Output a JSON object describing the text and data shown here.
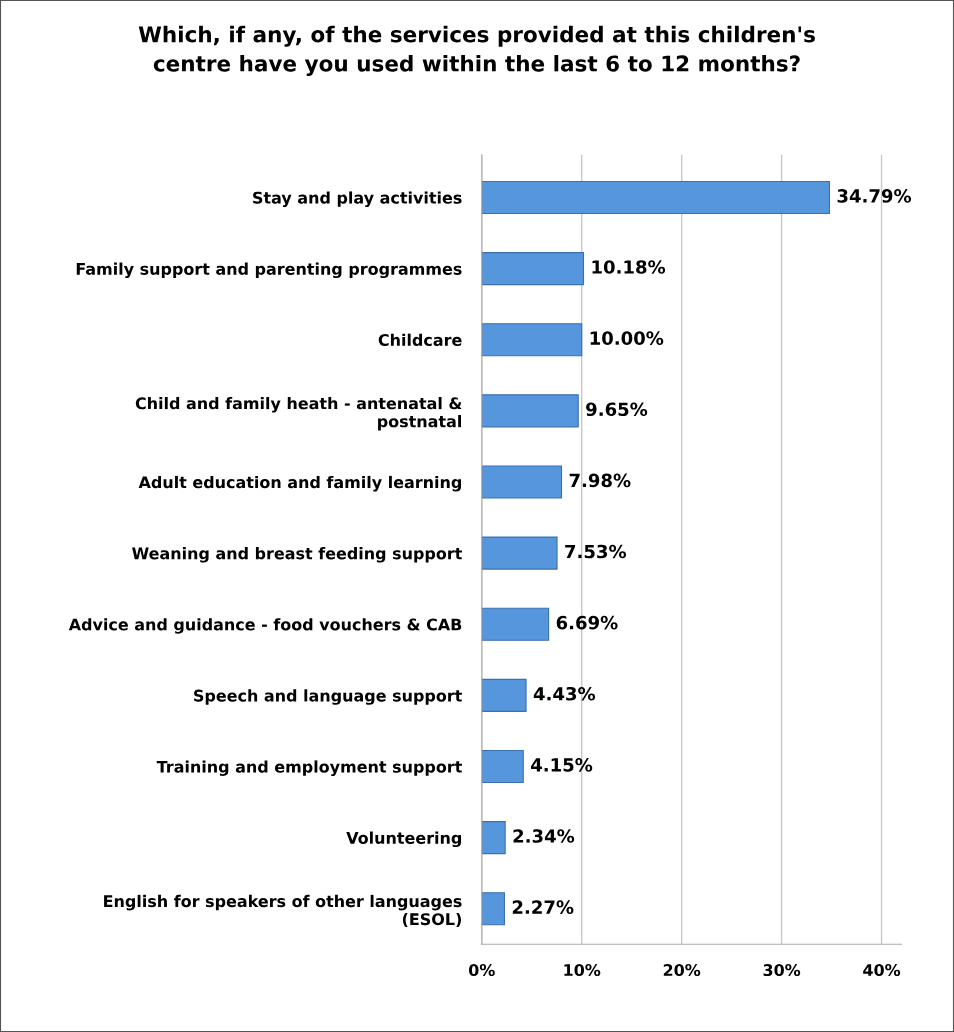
{
  "chart_data": {
    "type": "bar",
    "orientation": "horizontal",
    "title": "Which, if any, of the services provided at this children's\ncentre have you used within the last 6 to 12 months?",
    "categories": [
      "Stay and play activities",
      "Family support and parenting programmes",
      "Childcare",
      "Child and family heath - antenatal &\npostnatal",
      "Adult education and family learning",
      "Weaning and breast feeding support",
      "Advice and guidance - food vouchers & CAB",
      "Speech and language support",
      "Training and employment support",
      "Volunteering",
      "English for speakers of other languages\n(ESOL)"
    ],
    "values": [
      34.79,
      10.18,
      10.0,
      9.65,
      7.98,
      7.53,
      6.69,
      4.43,
      4.15,
      2.34,
      2.27
    ],
    "value_labels": [
      "34.79%",
      "10.18%",
      "10.00%",
      "9.65%",
      "7.98%",
      "7.53%",
      "6.69%",
      "4.43%",
      "4.15%",
      "2.34%",
      "2.27%"
    ],
    "color": "#5596dc",
    "xlim": [
      0,
      42
    ],
    "xticks": [
      {
        "value": 0,
        "label": "0%"
      },
      {
        "value": 10,
        "label": "10%"
      },
      {
        "value": 20,
        "label": "20%"
      },
      {
        "value": 30,
        "label": "30%"
      },
      {
        "value": 40,
        "label": "40%"
      }
    ],
    "grid": "x"
  }
}
